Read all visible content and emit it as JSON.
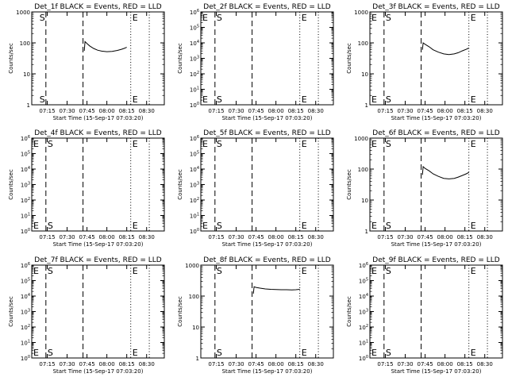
{
  "chart_data": [
    {
      "type": "line",
      "title": "Det_1f BLACK = Events, RED = LLD",
      "xlabel": "Start Time (15-Sep-17 07:03:20)",
      "ylabel": "Counts/sec",
      "y_scale": "log",
      "ylim": [
        1,
        1000
      ],
      "y_ticks": [
        1,
        10,
        100,
        1000
      ],
      "y_tick_labels": [
        "1",
        "10",
        "100",
        "1000"
      ],
      "xlim": [
        "07:03:20",
        "08:43:20"
      ],
      "x_tick_labels": [
        "07:15",
        "07:30",
        "07:45",
        "08:00",
        "08:15",
        "08:30"
      ],
      "start_label": "S",
      "end_label": "E",
      "start_time": "07:08:00",
      "end_time": "08:18:00",
      "dash_lines": [
        "07:14:00",
        "07:42:00"
      ],
      "dot_lines": [
        "08:18:00",
        "08:32:00"
      ],
      "series": [
        {
          "x": [
            "07:43:00",
            "07:43:30",
            "07:45:00",
            "07:47:00",
            "07:50:00",
            "07:53:00",
            "07:56:00",
            "08:00:00",
            "08:04:00",
            "08:08:00",
            "08:11:00",
            "08:13:00",
            "08:15:00"
          ],
          "y": [
            55,
            110,
            95,
            80,
            66,
            58,
            54,
            52,
            53,
            57,
            62,
            66,
            72
          ]
        }
      ]
    },
    {
      "type": "line",
      "title": "Det_2f BLACK = Events, RED = LLD",
      "xlabel": "Start Time (15-Sep-17 07:03:20)",
      "ylabel": "Counts/sec",
      "y_scale": "log",
      "ylim": [
        1,
        1000000
      ],
      "y_ticks": [
        1,
        10,
        100,
        1000,
        10000,
        100000,
        1000000
      ],
      "y_tick_labels": [
        "10^0",
        "10^1",
        "10^2",
        "10^3",
        "10^4",
        "10^5",
        "10^6"
      ],
      "xlim": [
        "07:03:20",
        "08:43:20"
      ],
      "x_tick_labels": [
        "07:15",
        "07:30",
        "07:45",
        "08:00",
        "08:15",
        "08:30"
      ],
      "start_label": "E",
      "end_label": "E",
      "second_label": "S",
      "start_time": "07:03:20",
      "end_time": "08:18:00",
      "dash_lines": [
        "07:14:00",
        "07:42:00"
      ],
      "dot_lines": [
        "08:18:00",
        "08:32:00"
      ],
      "series": []
    },
    {
      "type": "line",
      "title": "Det_3f BLACK = Events, RED = LLD",
      "xlabel": "Start Time (15-Sep-17 07:03:20)",
      "ylabel": "Counts/sec",
      "y_scale": "log",
      "ylim": [
        1,
        1000
      ],
      "y_ticks": [
        1,
        10,
        100,
        1000
      ],
      "y_tick_labels": [
        "1",
        "10",
        "100",
        "1000"
      ],
      "xlim": [
        "07:03:20",
        "08:43:20"
      ],
      "x_tick_labels": [
        "07:15",
        "07:30",
        "07:45",
        "08:00",
        "08:15",
        "08:30"
      ],
      "start_label": "E",
      "end_label": "E",
      "second_label": "S",
      "start_time": "07:03:20",
      "end_time": "08:18:00",
      "dash_lines": [
        "07:14:00",
        "07:42:00"
      ],
      "dot_lines": [
        "08:18:00",
        "08:32:00"
      ],
      "series": [
        {
          "x": [
            "07:43:00",
            "07:43:30",
            "07:45:00",
            "07:48:00",
            "07:51:00",
            "07:55:00",
            "07:59:00",
            "08:03:00",
            "08:07:00",
            "08:10:00",
            "08:13:00",
            "08:16:00",
            "08:18:00"
          ],
          "y": [
            60,
            100,
            90,
            75,
            60,
            50,
            44,
            42,
            44,
            48,
            55,
            62,
            68
          ]
        }
      ]
    },
    {
      "type": "line",
      "title": "Det_4f BLACK = Events, RED = LLD",
      "xlabel": "Start Time (15-Sep-17 07:03:20)",
      "ylabel": "Counts/sec",
      "y_scale": "log",
      "ylim": [
        1,
        1000000
      ],
      "y_ticks": [
        1,
        10,
        100,
        1000,
        10000,
        100000,
        1000000
      ],
      "y_tick_labels": [
        "10^0",
        "10^1",
        "10^2",
        "10^3",
        "10^4",
        "10^5",
        "10^6"
      ],
      "xlim": [
        "07:03:20",
        "08:43:20"
      ],
      "x_tick_labels": [
        "07:15",
        "07:30",
        "07:45",
        "08:00",
        "08:15",
        "08:30"
      ],
      "start_label": "E",
      "end_label": "E",
      "second_label": "S",
      "start_time": "07:03:20",
      "end_time": "08:18:00",
      "dash_lines": [
        "07:14:00",
        "07:42:00"
      ],
      "dot_lines": [
        "08:18:00",
        "08:32:00"
      ],
      "series": []
    },
    {
      "type": "line",
      "title": "Det_5f BLACK = Events, RED = LLD",
      "xlabel": "Start Time (15-Sep-17 07:03:20)",
      "ylabel": "Counts/sec",
      "y_scale": "log",
      "ylim": [
        1,
        1000000
      ],
      "y_ticks": [
        1,
        10,
        100,
        1000,
        10000,
        100000,
        1000000
      ],
      "y_tick_labels": [
        "10^0",
        "10^1",
        "10^2",
        "10^3",
        "10^4",
        "10^5",
        "10^6"
      ],
      "xlim": [
        "07:03:20",
        "08:43:20"
      ],
      "x_tick_labels": [
        "07:15",
        "07:30",
        "07:45",
        "08:00",
        "08:15",
        "08:30"
      ],
      "start_label": "E",
      "end_label": "E",
      "second_label": "S",
      "start_time": "07:03:20",
      "end_time": "08:18:00",
      "dash_lines": [
        "07:14:00",
        "07:42:00"
      ],
      "dot_lines": [
        "08:18:00",
        "08:32:00"
      ],
      "series": []
    },
    {
      "type": "line",
      "title": "Det_6f BLACK = Events, RED = LLD",
      "xlabel": "Start Time (15-Sep-17 07:03:20)",
      "ylabel": "Counts/sec",
      "y_scale": "log",
      "ylim": [
        1,
        1000
      ],
      "y_ticks": [
        1,
        10,
        100,
        1000
      ],
      "y_tick_labels": [
        "1",
        "10",
        "100",
        "1000"
      ],
      "xlim": [
        "07:03:20",
        "08:43:20"
      ],
      "x_tick_labels": [
        "07:15",
        "07:30",
        "07:45",
        "08:00",
        "08:15",
        "08:30"
      ],
      "start_label": "E",
      "end_label": "E",
      "second_label": "S",
      "start_time": "07:03:20",
      "end_time": "08:18:00",
      "dash_lines": [
        "07:14:00",
        "07:42:00"
      ],
      "dot_lines": [
        "08:18:00",
        "08:32:00"
      ],
      "series": [
        {
          "x": [
            "07:43:00",
            "07:43:30",
            "07:45:00",
            "07:48:00",
            "07:51:00",
            "07:55:00",
            "07:59:00",
            "08:03:00",
            "08:07:00",
            "08:10:00",
            "08:13:00",
            "08:16:00",
            "08:18:00"
          ],
          "y": [
            65,
            120,
            105,
            88,
            70,
            58,
            50,
            48,
            50,
            55,
            62,
            70,
            78
          ]
        }
      ]
    },
    {
      "type": "line",
      "title": "Det_7f BLACK = Events, RED = LLD",
      "xlabel": "Start Time (15-Sep-17 07:03:20)",
      "ylabel": "Counts/sec",
      "y_scale": "log",
      "ylim": [
        1,
        1000000
      ],
      "y_ticks": [
        1,
        10,
        100,
        1000,
        10000,
        100000,
        1000000
      ],
      "y_tick_labels": [
        "10^0",
        "10^1",
        "10^2",
        "10^3",
        "10^4",
        "10^5",
        "10^6"
      ],
      "xlim": [
        "07:03:20",
        "08:43:20"
      ],
      "x_tick_labels": [
        "07:15",
        "07:30",
        "07:45",
        "08:00",
        "08:15",
        "08:30"
      ],
      "start_label": "E",
      "end_label": "E",
      "second_label": "S",
      "start_time": "07:03:20",
      "end_time": "08:18:00",
      "dash_lines": [
        "07:14:00",
        "07:42:00"
      ],
      "dot_lines": [
        "08:18:00",
        "08:32:00"
      ],
      "series": []
    },
    {
      "type": "line",
      "title": "Det_8f BLACK = Events, RED = LLD",
      "xlabel": "Start Time (15-Sep-17 07:03:20)",
      "ylabel": "Counts/sec",
      "y_scale": "log",
      "ylim": [
        1,
        1000
      ],
      "y_ticks": [
        1,
        10,
        100,
        1000
      ],
      "y_tick_labels": [
        "1",
        "10",
        "100",
        "1000"
      ],
      "xlim": [
        "07:03:20",
        "08:43:20"
      ],
      "x_tick_labels": [
        "07:15",
        "07:30",
        "07:45",
        "08:00",
        "08:15",
        "08:30"
      ],
      "start_label": "S",
      "end_label": "E",
      "start_time": "07:14:00",
      "end_time": "08:18:00",
      "dash_lines": [
        "07:14:00",
        "07:42:00"
      ],
      "dot_lines": [
        "08:18:00",
        "08:32:00"
      ],
      "series": [
        {
          "x": [
            "07:43:00",
            "07:43:30",
            "07:45:00",
            "07:48:00",
            "07:52:00",
            "07:56:00",
            "08:00:00",
            "08:04:00",
            "08:08:00",
            "08:12:00",
            "08:15:00",
            "08:18:00"
          ],
          "y": [
            120,
            200,
            190,
            180,
            170,
            165,
            162,
            160,
            160,
            158,
            160,
            165
          ]
        }
      ]
    },
    {
      "type": "line",
      "title": "Det_9f BLACK = Events, RED = LLD",
      "xlabel": "Start Time (15-Sep-17 07:03:20)",
      "ylabel": "Counts/sec",
      "y_scale": "log",
      "ylim": [
        1,
        1000000
      ],
      "y_ticks": [
        1,
        10,
        100,
        1000,
        10000,
        100000,
        1000000
      ],
      "y_tick_labels": [
        "10^0",
        "10^1",
        "10^2",
        "10^3",
        "10^4",
        "10^5",
        "10^6"
      ],
      "xlim": [
        "07:03:20",
        "08:43:20"
      ],
      "x_tick_labels": [
        "07:15",
        "07:30",
        "07:45",
        "08:00",
        "08:15",
        "08:30"
      ],
      "start_label": "E",
      "end_label": "E",
      "second_label": "S",
      "start_time": "07:03:20",
      "end_time": "08:18:00",
      "dash_lines": [
        "07:14:00",
        "07:42:00"
      ],
      "dot_lines": [
        "08:18:00",
        "08:32:00"
      ],
      "series": []
    }
  ]
}
